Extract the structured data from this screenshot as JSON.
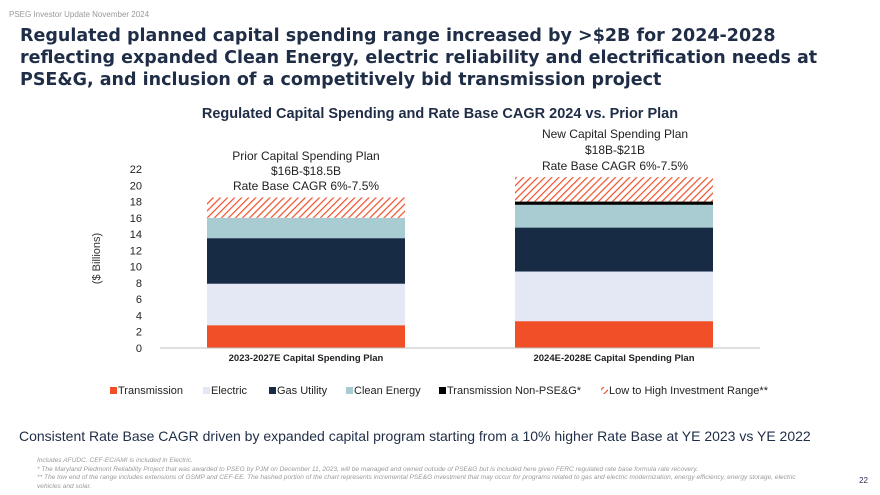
{
  "header": {
    "tag": "PSEG Investor Update November 2024"
  },
  "headline": "Regulated planned capital spending range increased by >$2B for 2024-2028 reflecting expanded Clean Energy, electric reliability and electrification needs at PSE&G, and inclusion of a competitively bid transmission project",
  "colors": {
    "navy": "#1f2d47",
    "transmission": "#f04f28",
    "electric": "#e3e8f4",
    "gas_utility": "#172b45",
    "clean_energy": "#a9cbd2",
    "transmission_non_pseg": "#000000",
    "range_hatch": "#f04f28"
  },
  "chart_data": {
    "type": "bar",
    "stacked": true,
    "title": "Regulated Capital Spending and Rate Base CAGR 2024 vs. Prior Plan",
    "xlabel": "",
    "ylabel": "($ Billions)",
    "ylim": [
      0,
      22
    ],
    "yticks": [
      0,
      2,
      4,
      6,
      8,
      10,
      12,
      14,
      16,
      18,
      20,
      22
    ],
    "grid": false,
    "legend_position": "bottom",
    "categories": [
      "2023-2027E Capital Spending Plan",
      "2024E-2028E Capital Spending Plan"
    ],
    "series": [
      {
        "name": "Transmission",
        "key": "transmission",
        "values": [
          2.8,
          3.3
        ]
      },
      {
        "name": "Electric",
        "key": "electric",
        "values": [
          5.1,
          6.1
        ]
      },
      {
        "name": "Gas Utility",
        "key": "gas_utility",
        "values": [
          5.6,
          5.4
        ]
      },
      {
        "name": "Clean Energy",
        "key": "clean_energy",
        "values": [
          2.5,
          2.8
        ]
      },
      {
        "name": "Transmission Non-PSE&G*",
        "key": "transmission_non_pseg",
        "values": [
          0,
          0.4
        ]
      },
      {
        "name": "Low to High Investment Range**",
        "key": "range_hatch",
        "values": [
          2.5,
          3.0
        ]
      }
    ],
    "annotations": [
      {
        "lines": [
          "Prior Capital Spending Plan",
          "$16B-$18.5B",
          "Rate Base CAGR 6%-7.5%"
        ]
      },
      {
        "lines": [
          "New Capital Spending Plan",
          "$18B-$21B",
          "Rate Base CAGR 6%-7.5%"
        ]
      }
    ]
  },
  "conclusion": "Consistent Rate Base CAGR driven by expanded capital program starting from a 10% higher Rate Base at YE 2023 vs YE 2022",
  "footnotes": [
    "Includes AFUDC. CEF-EC/AMI is included in Electric.",
    "* The Maryland Piedmont Reliability Project that was awarded to PSEG by PJM on December 11, 2023, will be managed and owned outside of PSE&G but is included here given FERC regulated rate base formula rate recovery.",
    "** The low end of the range includes extensions of GSMP and CEF-EE. The hashed portion of the chart represents incremental PSE&G investment that may occur for programs related to gas and electric modernization, energy efficiency, energy storage, electric vehicles and solar."
  ],
  "page_number": "22"
}
